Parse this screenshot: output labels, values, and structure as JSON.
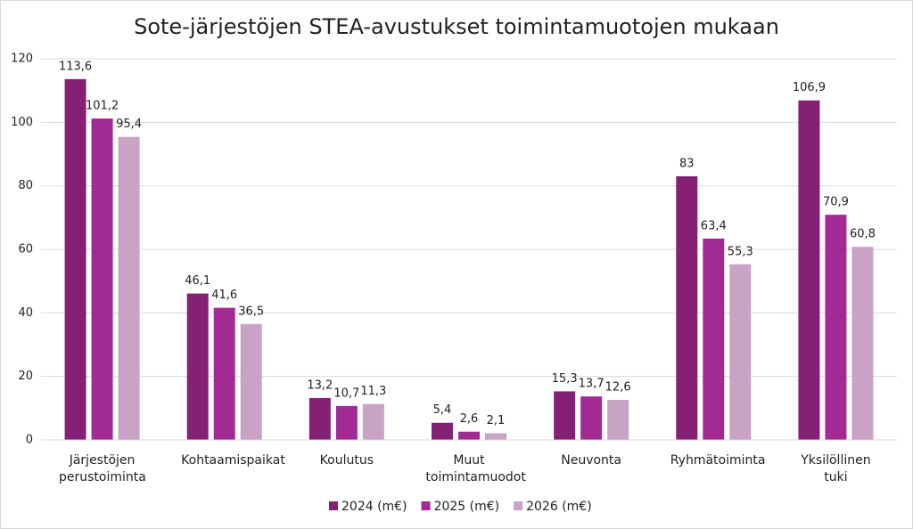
{
  "chart_data": {
    "type": "bar",
    "title": "Sote-järjestöjen STEA-avustukset toimintamuotojen mukaan",
    "categories": [
      "Järjestöjen perustoiminta",
      "Kohtaamispaikat",
      "Koulutus",
      "Muut toimintamuodot",
      "Neuvonta",
      "Ryhmätoiminta",
      "Yksilöllinen tuki"
    ],
    "series": [
      {
        "name": "2024 (m€)",
        "color": "#842174",
        "values": [
          113.6,
          46.1,
          13.2,
          5.4,
          15.3,
          83,
          106.9
        ],
        "value_labels": [
          "113,6",
          "46,1",
          "13,2",
          "5,4",
          "15,3",
          "83",
          "106,9"
        ]
      },
      {
        "name": "2025 (m€)",
        "color": "#a22a95",
        "values": [
          101.2,
          41.6,
          10.7,
          2.6,
          13.7,
          63.4,
          70.9
        ],
        "value_labels": [
          "101,2",
          "41,6",
          "10,7",
          "2,6",
          "13,7",
          "63,4",
          "70,9"
        ]
      },
      {
        "name": "2026 (m€)",
        "color": "#c9a3c5",
        "values": [
          95.4,
          36.5,
          11.3,
          2.1,
          12.6,
          55.3,
          60.8
        ],
        "value_labels": [
          "95,4",
          "36,5",
          "11,3",
          "2,1",
          "12,6",
          "55,3",
          "60,8"
        ]
      }
    ],
    "ylim": [
      0,
      120
    ],
    "yticks": [
      0,
      20,
      40,
      60,
      80,
      100,
      120
    ],
    "grid": true,
    "legend": "bottom"
  }
}
